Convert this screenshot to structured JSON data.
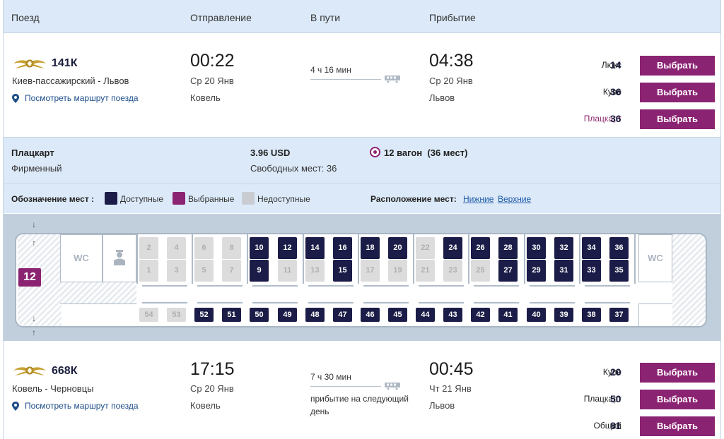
{
  "header": {
    "col_train": "Поезд",
    "col_depart": "Отправление",
    "col_travel": "В пути",
    "col_arrive": "Прибытие"
  },
  "train1": {
    "number": "141К",
    "route": "Киев-пассажирский - Львов",
    "map_link": "Посмотреть маршрут поезда",
    "depart_time": "00:22",
    "depart_date": "Ср 20 Янв",
    "depart_station": "Ковель",
    "duration": "4 ч 16 мин",
    "arrive_time": "04:38",
    "arrive_date": "Ср 20 Янв",
    "arrive_station": "Львов",
    "classes": [
      {
        "name": "Люкс",
        "count": "14",
        "button": "Выбрать"
      },
      {
        "name": "Купе",
        "count": "36",
        "button": "Выбрать"
      },
      {
        "name": "Плацкарт",
        "count": "36",
        "button": "Выбрать"
      }
    ]
  },
  "wagon": {
    "type": "Плацкарт",
    "subtype": "Фирменный",
    "price": "3.96 USD",
    "free_seats": "Свободных мест: 36",
    "wagon_label": "12 вагон",
    "wagon_seats": "(36 мест)",
    "number": "12"
  },
  "legend": {
    "label": "Обозначение мест :",
    "available": "Доступные",
    "selected": "Выбранные",
    "unavailable": "Недоступные",
    "location_label": "Расположение мест:",
    "lower": "Нижние",
    "upper": "Верхние",
    "colors": {
      "available": "#1b1c47",
      "selected": "#8b2373",
      "unavailable": "#c9cdd2"
    }
  },
  "scheme": {
    "wc_left": "WC",
    "wc_right": "WC",
    "compartments": [
      {
        "top": {
          "n": "2",
          "s": "na"
        },
        "bottom": {
          "n": "1",
          "s": "na"
        }
      },
      {
        "top": {
          "n": "4",
          "s": "na"
        },
        "bottom": {
          "n": "3",
          "s": "na"
        }
      },
      {
        "top": {
          "n": "6",
          "s": "na"
        },
        "bottom": {
          "n": "5",
          "s": "na"
        }
      },
      {
        "top": {
          "n": "8",
          "s": "na"
        },
        "bottom": {
          "n": "7",
          "s": "na"
        }
      },
      {
        "top": {
          "n": "10",
          "s": "avail"
        },
        "bottom": {
          "n": "9",
          "s": "avail"
        }
      },
      {
        "top": {
          "n": "12",
          "s": "avail"
        },
        "bottom": {
          "n": "11",
          "s": "na"
        }
      },
      {
        "top": {
          "n": "14",
          "s": "avail"
        },
        "bottom": {
          "n": "13",
          "s": "na"
        }
      },
      {
        "top": {
          "n": "16",
          "s": "avail"
        },
        "bottom": {
          "n": "15",
          "s": "avail"
        }
      },
      {
        "top": {
          "n": "18",
          "s": "avail"
        },
        "bottom": {
          "n": "17",
          "s": "na"
        }
      },
      {
        "top": {
          "n": "20",
          "s": "avail"
        },
        "bottom": {
          "n": "19",
          "s": "na"
        }
      },
      {
        "top": {
          "n": "22",
          "s": "na"
        },
        "bottom": {
          "n": "21",
          "s": "na"
        }
      },
      {
        "top": {
          "n": "24",
          "s": "avail"
        },
        "bottom": {
          "n": "23",
          "s": "na"
        }
      },
      {
        "top": {
          "n": "26",
          "s": "avail"
        },
        "bottom": {
          "n": "25",
          "s": "na"
        }
      },
      {
        "top": {
          "n": "28",
          "s": "avail"
        },
        "bottom": {
          "n": "27",
          "s": "avail"
        }
      },
      {
        "top": {
          "n": "30",
          "s": "avail"
        },
        "bottom": {
          "n": "29",
          "s": "avail"
        }
      },
      {
        "top": {
          "n": "32",
          "s": "avail"
        },
        "bottom": {
          "n": "31",
          "s": "avail"
        }
      },
      {
        "top": {
          "n": "34",
          "s": "avail"
        },
        "bottom": {
          "n": "33",
          "s": "avail"
        }
      },
      {
        "top": {
          "n": "36",
          "s": "avail"
        },
        "bottom": {
          "n": "35",
          "s": "avail"
        }
      }
    ],
    "side": [
      {
        "n": "54",
        "s": "na"
      },
      {
        "n": "53",
        "s": "na"
      },
      {
        "n": "52",
        "s": "avail"
      },
      {
        "n": "51",
        "s": "avail"
      },
      {
        "n": "50",
        "s": "avail"
      },
      {
        "n": "49",
        "s": "avail"
      },
      {
        "n": "48",
        "s": "avail"
      },
      {
        "n": "47",
        "s": "avail"
      },
      {
        "n": "46",
        "s": "avail"
      },
      {
        "n": "45",
        "s": "avail"
      },
      {
        "n": "44",
        "s": "avail"
      },
      {
        "n": "43",
        "s": "avail"
      },
      {
        "n": "42",
        "s": "avail"
      },
      {
        "n": "41",
        "s": "avail"
      },
      {
        "n": "40",
        "s": "avail"
      },
      {
        "n": "39",
        "s": "avail"
      },
      {
        "n": "38",
        "s": "avail"
      },
      {
        "n": "37",
        "s": "avail"
      }
    ]
  },
  "train2": {
    "number": "668К",
    "route": "Ковель - Черновцы",
    "map_link": "Посмотреть маршрут поезда",
    "depart_time": "17:15",
    "depart_date": "Ср 20 Янв",
    "depart_station": "Ковель",
    "duration": "7 ч 30 мин",
    "next_day": "прибытие на следующий день",
    "arrive_time": "00:45",
    "arrive_date": "Чт 21 Янв",
    "arrive_station": "Львов",
    "classes": [
      {
        "name": "Купе",
        "count": "20",
        "button": "Выбрать"
      },
      {
        "name": "Плацкарт",
        "count": "50",
        "button": "Выбрать"
      },
      {
        "name": "Общий",
        "count": "81",
        "button": "Выбрать"
      }
    ]
  }
}
